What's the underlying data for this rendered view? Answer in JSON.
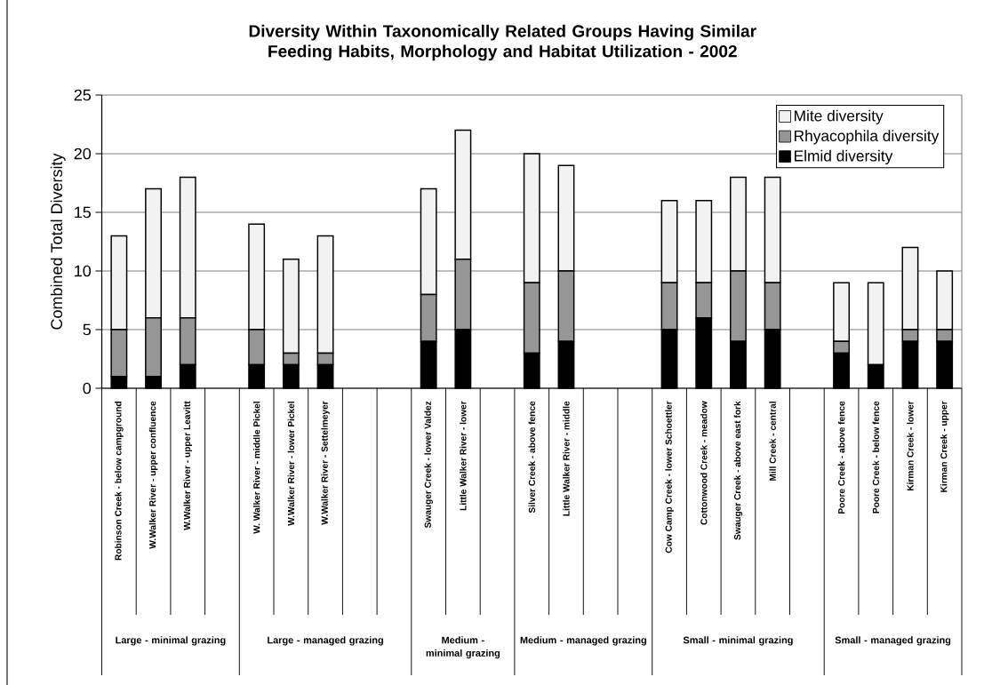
{
  "chart_data": {
    "type": "bar",
    "stacked": true,
    "title": "Diversity Within Taxonomically Related Groups Having Similar Feeding Habits, Morphology and Habitat Utilization - 2002",
    "ylabel": "Combined Total Diversity",
    "categories": [
      "Robinson Creek - below campground",
      "W.Walker River - upper confluence",
      "W.Walker River - upper Leavitt",
      null,
      "W. Walker River - middle Pickel",
      "W.Walker River - lower Pickel",
      "W.Walker River - Settelmeyer",
      null,
      null,
      "Swauger Creek - lower Valdez",
      "Little Walker River - lower",
      null,
      "Silver Creek - above fence",
      "Little Walker River - middle",
      null,
      null,
      "Cow Camp Creek - lower Schoettler",
      "Cottonwood Creek - meadow",
      "Swauger Creek - above east fork",
      "Mill Creek - central",
      null,
      "Poore Creek - above fence",
      "Poore Creek - below fence",
      "Kirman Creek - lower",
      "Kirman Creek - upper"
    ],
    "series": [
      {
        "name": "Elmid diversity",
        "color": "#000000",
        "values": [
          1,
          1,
          2,
          null,
          2,
          2,
          2,
          null,
          null,
          4,
          5,
          null,
          3,
          4,
          null,
          null,
          5,
          6,
          4,
          5,
          null,
          3,
          2,
          4,
          4
        ]
      },
      {
        "name": "Rhyacophila diversity",
        "color": "#969696",
        "values": [
          4,
          5,
          4,
          null,
          3,
          1,
          1,
          null,
          null,
          4,
          6,
          null,
          6,
          6,
          null,
          null,
          4,
          3,
          6,
          4,
          null,
          1,
          0,
          1,
          1
        ]
      },
      {
        "name": "Mite diversity",
        "color": "#f2f2f2",
        "values": [
          8,
          11,
          12,
          null,
          9,
          8,
          10,
          null,
          null,
          9,
          11,
          null,
          11,
          9,
          null,
          null,
          7,
          7,
          8,
          9,
          null,
          5,
          7,
          7,
          5
        ]
      }
    ],
    "ylim": [
      0,
      25
    ],
    "yticks": [
      0,
      5,
      10,
      15,
      20,
      25
    ],
    "grid": "y",
    "legend": "top right",
    "annotations": [
      "Large - minimal grazing",
      "Large - managed grazing",
      "Medium - minimal grazing",
      "Medium - managed grazing",
      "Small - minimal grazing",
      "Small - managed grazing"
    ]
  }
}
